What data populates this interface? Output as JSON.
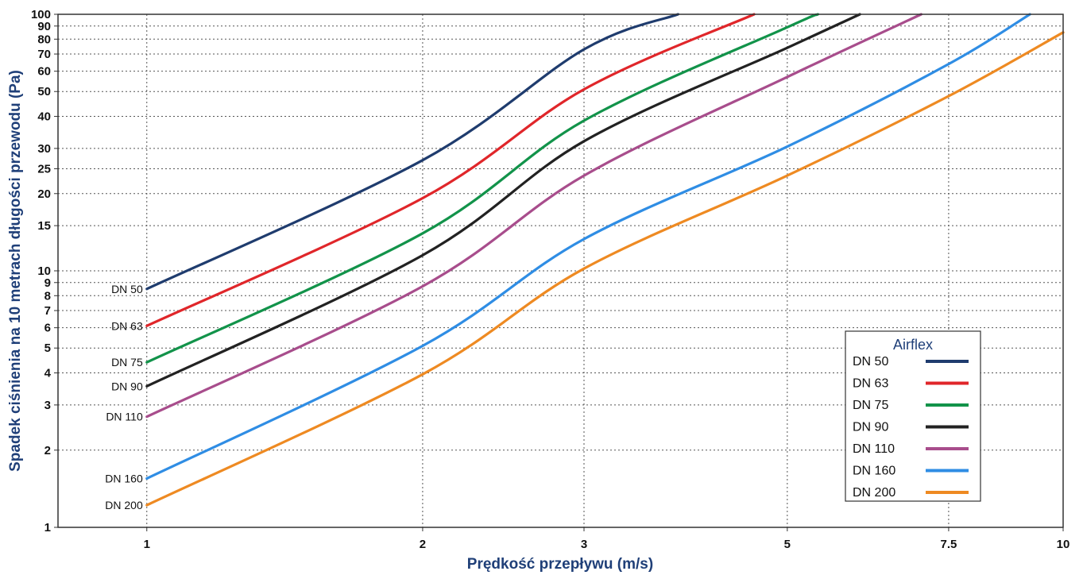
{
  "chart_data": {
    "type": "line",
    "xlabel": "Prędkość przepływu (m/s)",
    "ylabel": "Spadek ciśnienia na 10 metrach długości przewodu (Pa)",
    "x_scale": "log",
    "y_scale": "log",
    "xlim": [
      0.8,
      10
    ],
    "ylim": [
      1,
      100
    ],
    "x_ticks": [
      1,
      2,
      3,
      5,
      7.5,
      10
    ],
    "x_tick_labels": [
      "1",
      "2",
      "3",
      "5",
      "7.5",
      "10"
    ],
    "y_ticks": [
      1,
      2,
      3,
      4,
      5,
      6,
      7,
      8,
      9,
      10,
      15,
      20,
      25,
      30,
      40,
      50,
      60,
      70,
      80,
      90,
      100
    ],
    "y_tick_labels": [
      "1",
      "2",
      "3",
      "4",
      "5",
      "6",
      "7",
      "8",
      "9",
      "10",
      "15",
      "20",
      "25",
      "30",
      "40",
      "50",
      "60",
      "70",
      "80",
      "90",
      "100"
    ],
    "grid": true,
    "legend": {
      "title": "Airflex",
      "position": "lower-right"
    },
    "series": [
      {
        "name": "DN 50",
        "color": "#1f3c6e",
        "points": [
          [
            1,
            8.5
          ],
          [
            2,
            27
          ],
          [
            3,
            73
          ],
          [
            3.8,
            100
          ]
        ]
      },
      {
        "name": "DN 63",
        "color": "#e0262a",
        "points": [
          [
            1,
            6.1
          ],
          [
            2,
            19.2
          ],
          [
            3,
            51
          ],
          [
            4.6,
            100
          ]
        ]
      },
      {
        "name": "DN 75",
        "color": "#12934a",
        "points": [
          [
            1,
            4.4
          ],
          [
            2,
            14
          ],
          [
            3,
            38.5
          ],
          [
            5,
            89
          ],
          [
            5.4,
            100
          ]
        ]
      },
      {
        "name": "DN 90",
        "color": "#222222",
        "points": [
          [
            1,
            3.55
          ],
          [
            2,
            11.5
          ],
          [
            3,
            32
          ],
          [
            5,
            74
          ],
          [
            6,
            100
          ]
        ]
      },
      {
        "name": "DN 110",
        "color": "#a84d8c",
        "points": [
          [
            1,
            2.7
          ],
          [
            2,
            8.7
          ],
          [
            3,
            23.5
          ],
          [
            5,
            57
          ],
          [
            7,
            100
          ]
        ]
      },
      {
        "name": "DN 160",
        "color": "#2f8de4",
        "points": [
          [
            1,
            1.55
          ],
          [
            2,
            5.1
          ],
          [
            3,
            13.3
          ],
          [
            5,
            30.5
          ],
          [
            7.5,
            64
          ],
          [
            9.2,
            100
          ]
        ]
      },
      {
        "name": "DN 200",
        "color": "#ee8a22",
        "points": [
          [
            1,
            1.22
          ],
          [
            2,
            3.95
          ],
          [
            3,
            10.2
          ],
          [
            5,
            23.5
          ],
          [
            7.5,
            48
          ],
          [
            10,
            85
          ]
        ]
      }
    ]
  }
}
